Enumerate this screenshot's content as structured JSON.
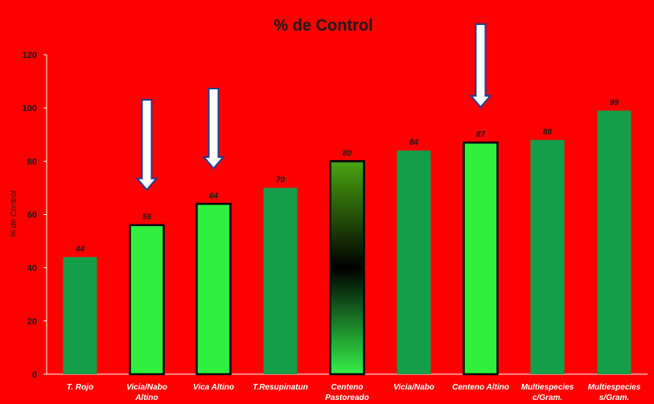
{
  "chart_data": {
    "type": "bar",
    "title": "% de Control",
    "xlabel": "",
    "ylabel": "% de Control",
    "ylim": [
      0,
      120
    ],
    "yticks": [
      0,
      20,
      40,
      60,
      80,
      100,
      120
    ],
    "grid": false,
    "legend": "none",
    "categories": [
      [
        "T. Rojo"
      ],
      [
        "Vicia/Nabo",
        "Altino"
      ],
      [
        "Vica Altino"
      ],
      [
        "T.Resupinatun"
      ],
      [
        "Centeno",
        "Pastoreado"
      ],
      [
        "Vicia/Nabo"
      ],
      [
        "Centeno Altino"
      ],
      [
        "Multiespecies",
        "c/Gram."
      ],
      [
        "Multiespecies",
        "s/Gram."
      ]
    ],
    "values": [
      44,
      56,
      64,
      70,
      80,
      84,
      87,
      88,
      99
    ],
    "value_labels": [
      "44",
      "56",
      "64",
      "70",
      "80",
      "84",
      "87",
      "88",
      "99"
    ],
    "bar_styles": [
      "dark-green",
      "light-green-outlined",
      "light-green-outlined",
      "dark-green",
      "gradient-outlined",
      "dark-green",
      "light-green-outlined",
      "dark-green",
      "dark-green"
    ],
    "arrows_over": [
      1,
      2,
      6
    ],
    "colors": {
      "background": "#ff0000",
      "dark_green": "#159e4a",
      "light_green": "#2ef03d",
      "outline": "#000000",
      "arrow_fill": "#ffffff",
      "arrow_stroke": "#1f3f8f",
      "gradient_top": "#4aa510",
      "gradient_mid": "#000000",
      "gradient_bottom": "#35f04a"
    }
  }
}
